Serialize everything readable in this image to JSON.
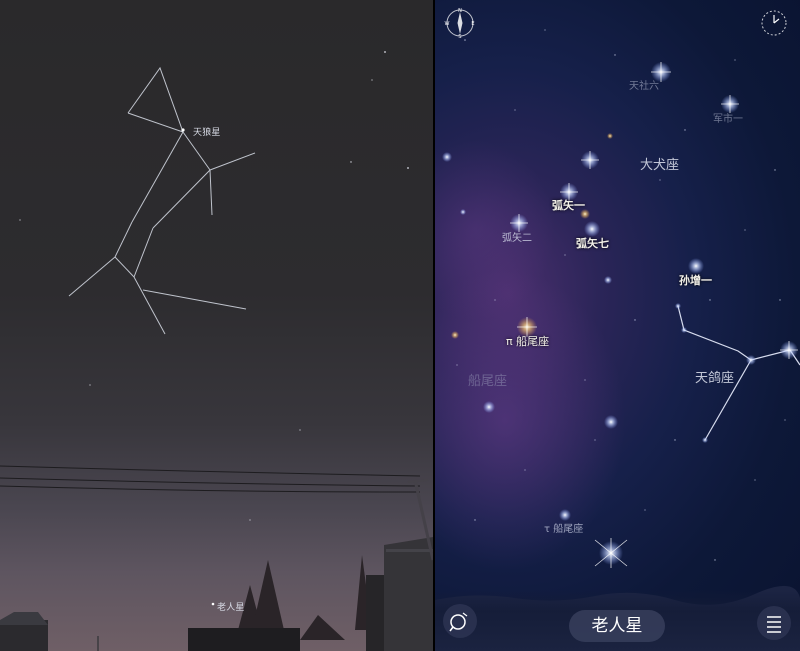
{
  "photo": {
    "labels": {
      "sirius": "天狼星",
      "canopus": "老人星"
    }
  },
  "skymap": {
    "constellations": {
      "canis_major": "大犬座",
      "columba": "天鸽座",
      "puppis": "船尾座",
      "monoceros_faint": "天社六 ",
      "faint_top": "军市一"
    },
    "stars": {
      "adhara": "弧矢一",
      "aludra": "弧矢二",
      "wezen": "弧矢七",
      "phact": "孙增一",
      "pi_puppis": "π 船尾座",
      "tau_puppis": "τ 船尾座"
    },
    "selected_target": "老人星"
  },
  "icons": {
    "compass": "compass-icon",
    "time": "clock-icon",
    "search": "search-icon",
    "menu": "menu-icon"
  },
  "colors": {
    "sky_photo": "#2d2c2f",
    "map_bg": "#0d1838",
    "nebula": "#4a2f6e",
    "pill": "#373e5c"
  }
}
